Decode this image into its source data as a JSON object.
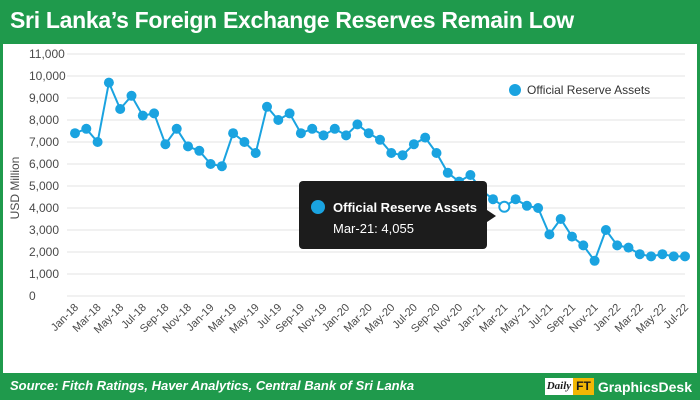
{
  "header": {
    "title": "Sri Lanka’s Foreign Exchange Reserves Remain Low"
  },
  "footer": {
    "source": "Source: Fitch Ratings, Haver Analytics, Central Bank of Sri Lanka",
    "brand_daily": "Daily",
    "brand_ft": "FT",
    "brand_desk": "GraphicsDesk"
  },
  "colors": {
    "frame": "#1f9a4c",
    "series": "#1aa3e0",
    "tooltip_bg": "#1c1c1c"
  },
  "tooltip": {
    "title": "Official Reserve Assets",
    "value": "Mar-21: 4,055"
  },
  "chart_data": {
    "type": "line",
    "title": "Sri Lanka’s Foreign Exchange Reserves Remain Low",
    "ylabel": "USD Million",
    "xlabel": "",
    "ylim": [
      0,
      11000
    ],
    "yticks": [
      0,
      1000,
      2000,
      3000,
      4000,
      5000,
      6000,
      7000,
      8000,
      9000,
      10000,
      11000
    ],
    "ytick_labels": [
      "0",
      "1,000",
      "2,000",
      "3,000",
      "4,000",
      "5,000",
      "6,000",
      "7,000",
      "8,000",
      "9,000",
      "10,000",
      "11,000"
    ],
    "x_tick_labels": [
      "Jan-18",
      "Mar-18",
      "May-18",
      "Jul-18",
      "Sep-18",
      "Nov-18",
      "Jan-19",
      "Mar-19",
      "May-19",
      "Jul-19",
      "Sep-19",
      "Nov-19",
      "Jan-20",
      "Mar-20",
      "May-20",
      "Jul-20",
      "Sep-20",
      "Nov-20",
      "Jan-21",
      "Mar-21",
      "May-21",
      "Jul-21",
      "Sep-21",
      "Nov-21",
      "Jan-22",
      "Mar-22",
      "May-22",
      "Jul-22"
    ],
    "categories": [
      "Jan-18",
      "Feb-18",
      "Mar-18",
      "Apr-18",
      "May-18",
      "Jun-18",
      "Jul-18",
      "Aug-18",
      "Sep-18",
      "Oct-18",
      "Nov-18",
      "Dec-18",
      "Jan-19",
      "Feb-19",
      "Mar-19",
      "Apr-19",
      "May-19",
      "Jun-19",
      "Jul-19",
      "Aug-19",
      "Sep-19",
      "Oct-19",
      "Nov-19",
      "Dec-19",
      "Jan-20",
      "Feb-20",
      "Mar-20",
      "Apr-20",
      "May-20",
      "Jun-20",
      "Jul-20",
      "Aug-20",
      "Sep-20",
      "Oct-20",
      "Nov-20",
      "Dec-20",
      "Jan-21",
      "Feb-21",
      "Mar-21",
      "Apr-21",
      "May-21",
      "Jun-21",
      "Jul-21",
      "Aug-21",
      "Sep-21",
      "Oct-21",
      "Nov-21",
      "Dec-21",
      "Jan-22",
      "Feb-22",
      "Mar-22",
      "Apr-22",
      "May-22",
      "Jun-22",
      "Jul-22"
    ],
    "series": [
      {
        "name": "Official Reserve Assets",
        "values": [
          7400,
          7600,
          7000,
          9700,
          8500,
          9100,
          8200,
          8300,
          6900,
          7600,
          6800,
          6600,
          6000,
          5900,
          7400,
          7000,
          6500,
          8600,
          8000,
          8300,
          7400,
          7600,
          7300,
          7600,
          7300,
          7800,
          7400,
          7100,
          6500,
          6400,
          6900,
          7200,
          6500,
          5600,
          5200,
          5500,
          4800,
          4400,
          4055,
          4400,
          4100,
          4000,
          2800,
          3500,
          2700,
          2300,
          1600,
          3000,
          2300,
          2200,
          1900,
          1800,
          1900,
          1800,
          1800
        ]
      }
    ],
    "highlight": {
      "category": "Mar-21",
      "value": 4055
    },
    "legend": {
      "position": "top-right",
      "entries": [
        "Official Reserve Assets"
      ]
    },
    "grid": true
  }
}
